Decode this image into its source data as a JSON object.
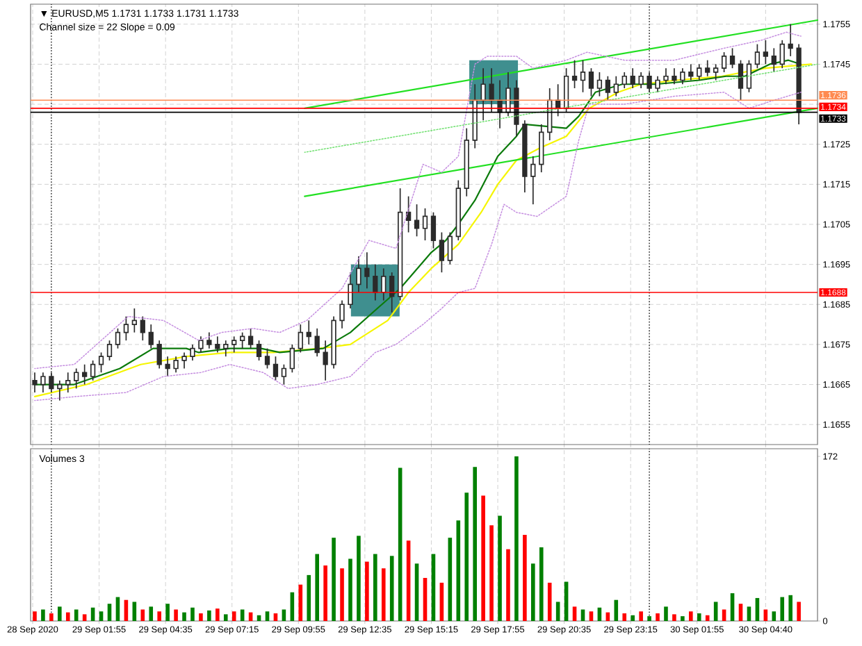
{
  "chart_data": [
    {
      "type": "candlestick",
      "title": "▼ EURUSD,M5 1.1731 1.1733 1.1731 1.1733",
      "subtitle": "Channel size = 22 Slope = 0.09",
      "x": [
        "2020-09-28T23:20",
        "2020-09-28T23:40",
        "2020-09-29T00:00",
        "2020-09-29T00:20",
        "2020-09-29T00:40",
        "2020-09-29T01:00",
        "2020-09-29T01:20",
        "2020-09-29T01:40",
        "2020-09-29T02:00",
        "2020-09-29T02:20",
        "2020-09-29T02:40",
        "2020-09-29T03:00",
        "2020-09-29T03:20",
        "2020-09-29T03:40",
        "2020-09-29T04:00",
        "2020-09-29T04:20",
        "2020-09-29T04:40",
        "2020-09-29T05:00",
        "2020-09-29T05:20",
        "2020-09-29T05:40",
        "2020-09-29T06:00",
        "2020-09-29T06:20",
        "2020-09-29T06:40",
        "2020-09-29T07:00",
        "2020-09-29T07:20",
        "2020-09-29T07:40",
        "2020-09-29T08:00",
        "2020-09-29T08:20",
        "2020-09-29T08:40",
        "2020-09-29T09:00",
        "2020-09-29T09:20",
        "2020-09-29T09:40",
        "2020-09-29T10:00",
        "2020-09-29T10:20",
        "2020-09-29T10:40",
        "2020-09-29T11:00",
        "2020-09-29T11:20",
        "2020-09-29T11:40",
        "2020-09-29T12:00",
        "2020-09-29T12:20",
        "2020-09-29T12:40",
        "2020-09-29T13:00",
        "2020-09-29T13:20",
        "2020-09-29T13:40",
        "2020-09-29T14:00",
        "2020-09-29T14:20",
        "2020-09-29T14:40",
        "2020-09-29T15:00",
        "2020-09-29T15:20",
        "2020-09-29T15:40",
        "2020-09-29T16:00",
        "2020-09-29T16:20",
        "2020-09-29T16:40",
        "2020-09-29T17:00",
        "2020-09-29T17:20",
        "2020-09-29T17:40",
        "2020-09-29T18:00",
        "2020-09-29T18:20",
        "2020-09-29T18:40",
        "2020-09-29T19:00",
        "2020-09-29T19:20",
        "2020-09-29T19:40",
        "2020-09-29T20:00",
        "2020-09-29T20:20",
        "2020-09-29T20:40",
        "2020-09-29T21:00",
        "2020-09-29T21:20",
        "2020-09-29T21:40",
        "2020-09-29T22:00",
        "2020-09-29T22:20",
        "2020-09-29T22:40",
        "2020-09-29T23:00",
        "2020-09-29T23:20",
        "2020-09-29T23:40",
        "2020-09-30T00:00",
        "2020-09-30T00:20",
        "2020-09-30T00:40",
        "2020-09-30T01:00",
        "2020-09-30T01:20",
        "2020-09-30T01:40",
        "2020-09-30T02:00",
        "2020-09-30T02:20",
        "2020-09-30T02:40",
        "2020-09-30T03:00",
        "2020-09-30T03:20",
        "2020-09-30T03:40",
        "2020-09-30T04:00",
        "2020-09-30T04:20",
        "2020-09-30T04:40",
        "2020-09-30T05:00",
        "2020-09-30T05:20",
        "2020-09-30T05:40",
        "2020-09-30T06:00"
      ],
      "ohlc": [
        [
          1.1666,
          1.1668,
          1.1663,
          1.1665
        ],
        [
          1.1665,
          1.1668,
          1.1663,
          1.1667
        ],
        [
          1.1667,
          1.1668,
          1.1663,
          1.1664
        ],
        [
          1.1664,
          1.1666,
          1.1661,
          1.1665
        ],
        [
          1.1665,
          1.1668,
          1.1663,
          1.1666
        ],
        [
          1.1666,
          1.1669,
          1.1664,
          1.1668
        ],
        [
          1.1668,
          1.167,
          1.1665,
          1.1667
        ],
        [
          1.1667,
          1.1671,
          1.1666,
          1.167
        ],
        [
          1.167,
          1.1673,
          1.1668,
          1.1672
        ],
        [
          1.1672,
          1.1676,
          1.1671,
          1.1675
        ],
        [
          1.1675,
          1.1679,
          1.1674,
          1.1678
        ],
        [
          1.1678,
          1.1682,
          1.1676,
          1.168
        ],
        [
          1.168,
          1.1684,
          1.1678,
          1.1681
        ],
        [
          1.1681,
          1.1682,
          1.1676,
          1.1678
        ],
        [
          1.1678,
          1.168,
          1.1674,
          1.1675
        ],
        [
          1.1675,
          1.1676,
          1.1669,
          1.167
        ],
        [
          1.167,
          1.1672,
          1.1667,
          1.1669
        ],
        [
          1.1669,
          1.1672,
          1.1668,
          1.1671
        ],
        [
          1.1671,
          1.1673,
          1.1669,
          1.1672
        ],
        [
          1.1672,
          1.1675,
          1.1671,
          1.1674
        ],
        [
          1.1674,
          1.1677,
          1.1673,
          1.1676
        ],
        [
          1.1676,
          1.1678,
          1.1674,
          1.1675
        ],
        [
          1.1675,
          1.1677,
          1.1673,
          1.1674
        ],
        [
          1.1674,
          1.1676,
          1.1672,
          1.1675
        ],
        [
          1.1675,
          1.1677,
          1.1673,
          1.1676
        ],
        [
          1.1676,
          1.1678,
          1.1674,
          1.1677
        ],
        [
          1.1677,
          1.1679,
          1.1674,
          1.1675
        ],
        [
          1.1675,
          1.1676,
          1.1671,
          1.1672
        ],
        [
          1.1672,
          1.1674,
          1.1669,
          1.167
        ],
        [
          1.167,
          1.1672,
          1.1666,
          1.1667
        ],
        [
          1.1667,
          1.167,
          1.1665,
          1.1669
        ],
        [
          1.1669,
          1.1675,
          1.1668,
          1.1674
        ],
        [
          1.1674,
          1.168,
          1.1673,
          1.1678
        ],
        [
          1.1678,
          1.1681,
          1.1675,
          1.1677
        ],
        [
          1.1677,
          1.1679,
          1.1672,
          1.1673
        ],
        [
          1.1673,
          1.1676,
          1.1666,
          1.167
        ],
        [
          1.167,
          1.1682,
          1.1669,
          1.1681
        ],
        [
          1.1681,
          1.1686,
          1.1679,
          1.1685
        ],
        [
          1.1685,
          1.1693,
          1.1684,
          1.169
        ],
        [
          1.169,
          1.1697,
          1.1688,
          1.1694
        ],
        [
          1.1694,
          1.1698,
          1.1689,
          1.1692
        ],
        [
          1.1692,
          1.1695,
          1.1686,
          1.1688
        ],
        [
          1.1688,
          1.1694,
          1.1686,
          1.1692
        ],
        [
          1.1692,
          1.1693,
          1.1683,
          1.1687
        ],
        [
          1.1687,
          1.1714,
          1.1686,
          1.1708
        ],
        [
          1.1708,
          1.1712,
          1.1703,
          1.1706
        ],
        [
          1.1706,
          1.171,
          1.1702,
          1.1704
        ],
        [
          1.1704,
          1.1709,
          1.1701,
          1.1707
        ],
        [
          1.1707,
          1.1708,
          1.1699,
          1.1701
        ],
        [
          1.1701,
          1.1703,
          1.1693,
          1.1696
        ],
        [
          1.1696,
          1.1703,
          1.1695,
          1.1702
        ],
        [
          1.1702,
          1.1716,
          1.1701,
          1.1714
        ],
        [
          1.1714,
          1.1729,
          1.1712,
          1.1726
        ],
        [
          1.1726,
          1.174,
          1.1724,
          1.1736
        ],
        [
          1.1736,
          1.1744,
          1.1731,
          1.174
        ],
        [
          1.174,
          1.1744,
          1.1733,
          1.1736
        ],
        [
          1.1736,
          1.1741,
          1.1729,
          1.1733
        ],
        [
          1.1733,
          1.1743,
          1.1732,
          1.1739
        ],
        [
          1.1739,
          1.1741,
          1.1727,
          1.173
        ],
        [
          1.173,
          1.1731,
          1.1713,
          1.1717
        ],
        [
          1.1717,
          1.1722,
          1.171,
          1.172
        ],
        [
          1.172,
          1.173,
          1.1718,
          1.1728
        ],
        [
          1.1728,
          1.1739,
          1.1726,
          1.1736
        ],
        [
          1.1736,
          1.174,
          1.1732,
          1.1734
        ],
        [
          1.1734,
          1.1744,
          1.1733,
          1.1742
        ],
        [
          1.1742,
          1.1746,
          1.1739,
          1.1741
        ],
        [
          1.1741,
          1.1746,
          1.1738,
          1.1743
        ],
        [
          1.1743,
          1.1744,
          1.1737,
          1.1739
        ],
        [
          1.1739,
          1.1743,
          1.1737,
          1.1741
        ],
        [
          1.1741,
          1.1742,
          1.1736,
          1.1738
        ],
        [
          1.1738,
          1.1742,
          1.1737,
          1.174
        ],
        [
          1.174,
          1.1743,
          1.1739,
          1.1742
        ],
        [
          1.1742,
          1.1744,
          1.1739,
          1.174
        ],
        [
          1.174,
          1.1743,
          1.1739,
          1.1742
        ],
        [
          1.1742,
          1.1743,
          1.1738,
          1.1739
        ],
        [
          1.1739,
          1.1742,
          1.1738,
          1.1741
        ],
        [
          1.1741,
          1.1744,
          1.174,
          1.1742
        ],
        [
          1.1742,
          1.1744,
          1.174,
          1.1741
        ],
        [
          1.1741,
          1.1744,
          1.174,
          1.1743
        ],
        [
          1.1743,
          1.1745,
          1.1741,
          1.1742
        ],
        [
          1.1742,
          1.1745,
          1.1741,
          1.1744
        ],
        [
          1.1744,
          1.1746,
          1.1742,
          1.1743
        ],
        [
          1.1743,
          1.1745,
          1.1741,
          1.1744
        ],
        [
          1.1744,
          1.1748,
          1.1743,
          1.1747
        ],
        [
          1.1747,
          1.1749,
          1.1744,
          1.1745
        ],
        [
          1.1745,
          1.1746,
          1.1736,
          1.1739
        ],
        [
          1.1739,
          1.1746,
          1.1738,
          1.1745
        ],
        [
          1.1745,
          1.175,
          1.1744,
          1.1748
        ],
        [
          1.1748,
          1.1751,
          1.1745,
          1.1747
        ],
        [
          1.1747,
          1.1749,
          1.1743,
          1.1745
        ],
        [
          1.1745,
          1.1751,
          1.1744,
          1.175
        ],
        [
          1.175,
          1.1755,
          1.1747,
          1.1749
        ],
        [
          1.1749,
          1.175,
          1.173,
          1.1733
        ]
      ],
      "color": "#2b2b2b",
      "series": [
        {
          "type": "bar",
          "x": [
            "2020-09-29T13:00",
            "2020-09-29T17:45"
          ],
          "base": [
            1.1682,
            1.1735
          ],
          "values": [
            0.0013,
            0.0011
          ],
          "color": "#3f8f8f"
        },
        {
          "type": "line",
          "line_style": "dotted",
          "color": "#c58ee0",
          "x": [
            "2020-09-28T23:20",
            "2020-09-29T00:55",
            "2020-09-29T03:05",
            "2020-09-29T04:30",
            "2020-09-29T05:55",
            "2020-09-29T06:50",
            "2020-09-29T08:05",
            "2020-09-29T09:10",
            "2020-09-29T10:15",
            "2020-09-29T11:40",
            "2020-09-29T12:45",
            "2020-09-29T13:50",
            "2020-09-29T14:55",
            "2020-09-29T15:40",
            "2020-09-29T16:20",
            "2020-09-29T17:00",
            "2020-09-29T17:30",
            "2020-09-29T18:40",
            "2020-09-29T19:20",
            "2020-09-29T20:40",
            "2020-09-29T21:30",
            "2020-09-29T23:00",
            "2020-09-30T01:00",
            "2020-09-30T03:00",
            "2020-09-30T04:30",
            "2020-09-30T05:30",
            "2020-09-30T06:05"
          ],
          "values": [
            1.1669,
            1.167,
            1.1682,
            1.1681,
            1.1676,
            1.1678,
            1.1679,
            1.1678,
            1.1681,
            1.1689,
            1.1701,
            1.1699,
            1.172,
            1.1718,
            1.1722,
            1.1745,
            1.1747,
            1.1747,
            1.1744,
            1.1746,
            1.1748,
            1.1746,
            1.1746,
            1.1749,
            1.1751,
            1.1753,
            1.1752
          ]
        },
        {
          "type": "line",
          "line_style": "dotted",
          "color": "#c58ee0",
          "x": [
            "2020-09-28T23:20",
            "2020-09-29T01:00",
            "2020-09-29T03:00",
            "2020-09-29T04:30",
            "2020-09-29T06:00",
            "2020-09-29T07:10",
            "2020-09-29T08:30",
            "2020-09-29T09:30",
            "2020-09-29T10:40",
            "2020-09-29T12:00",
            "2020-09-29T13:00",
            "2020-09-29T13:50",
            "2020-09-29T14:55",
            "2020-09-29T15:40",
            "2020-09-29T16:20",
            "2020-09-29T17:00",
            "2020-09-29T17:40",
            "2020-09-29T18:10",
            "2020-09-29T18:40",
            "2020-09-29T19:30",
            "2020-09-29T20:40",
            "2020-09-29T21:10",
            "2020-09-29T21:35",
            "2020-09-29T23:00",
            "2020-09-30T01:00",
            "2020-09-30T03:00",
            "2020-09-30T04:00",
            "2020-09-30T05:00",
            "2020-09-30T06:05"
          ],
          "values": [
            1.1661,
            1.1662,
            1.1663,
            1.1667,
            1.1668,
            1.167,
            1.1668,
            1.1664,
            1.1665,
            1.1667,
            1.1673,
            1.1675,
            1.168,
            1.1684,
            1.1688,
            1.1689,
            1.17,
            1.171,
            1.1708,
            1.1707,
            1.1712,
            1.1726,
            1.1735,
            1.1735,
            1.1737,
            1.1738,
            1.1734,
            1.1736,
            1.1738
          ]
        },
        {
          "type": "line",
          "line_style": "solid",
          "color": "#f5f500",
          "x": [
            "2020-09-28T23:20",
            "2020-09-29T01:25",
            "2020-09-29T03:35",
            "2020-09-29T05:25",
            "2020-09-29T07:10",
            "2020-09-29T08:55",
            "2020-09-29T10:45",
            "2020-09-29T12:00",
            "2020-09-29T13:30",
            "2020-09-29T14:20",
            "2020-09-29T15:15",
            "2020-09-29T16:20",
            "2020-09-29T17:15",
            "2020-09-29T17:55",
            "2020-09-29T18:40",
            "2020-09-29T19:35",
            "2020-09-29T20:40",
            "2020-09-29T21:35",
            "2020-09-29T22:45",
            "2020-09-29T23:40",
            "2020-09-30T01:05",
            "2020-09-30T02:55",
            "2020-09-30T04:40",
            "2020-09-30T06:30"
          ],
          "values": [
            1.1662,
            1.1665,
            1.167,
            1.1672,
            1.1673,
            1.1673,
            1.1674,
            1.1675,
            1.1681,
            1.1688,
            1.1694,
            1.17,
            1.1708,
            1.1715,
            1.1721,
            1.1724,
            1.1727,
            1.1734,
            1.1738,
            1.174,
            1.1741,
            1.1742,
            1.1744,
            1.1745
          ]
        },
        {
          "type": "line",
          "line_style": "solid",
          "color": "#0b7a0b",
          "x": [
            "2020-09-28T23:20",
            "2020-09-29T00:55",
            "2020-09-29T02:45",
            "2020-09-29T04:05",
            "2020-09-29T05:25",
            "2020-09-29T05:55",
            "2020-09-29T07:10",
            "2020-09-29T08:25",
            "2020-09-29T09:10",
            "2020-09-29T10:55",
            "2020-09-29T12:00",
            "2020-09-29T13:05",
            "2020-09-29T14:00",
            "2020-09-29T15:15",
            "2020-09-29T15:50",
            "2020-09-29T16:20",
            "2020-09-29T17:00",
            "2020-09-29T17:55",
            "2020-09-29T18:40",
            "2020-09-29T19:00",
            "2020-09-29T20:40",
            "2020-09-29T21:10",
            "2020-09-29T21:50",
            "2020-09-29T22:55",
            "2020-09-30T00:15",
            "2020-09-30T02:00",
            "2020-09-30T03:05",
            "2020-09-30T03:50",
            "2020-09-30T04:50",
            "2020-09-30T05:35",
            "2020-09-30T06:05"
          ],
          "values": [
            1.1665,
            1.1665,
            1.1669,
            1.1674,
            1.1674,
            1.1673,
            1.1674,
            1.1674,
            1.1673,
            1.1674,
            1.1678,
            1.1684,
            1.1689,
            1.1698,
            1.1701,
            1.1705,
            1.1711,
            1.1722,
            1.1727,
            1.173,
            1.1729,
            1.1732,
            1.1738,
            1.174,
            1.174,
            1.1741,
            1.1742,
            1.1742,
            1.1745,
            1.1746,
            1.1745
          ]
        },
        {
          "type": "line",
          "line_style": "solid",
          "color": "#22e022",
          "x": [
            "2020-09-29T10:10",
            "2020-09-30T06:45"
          ],
          "values": [
            1.1734,
            1.1756
          ]
        },
        {
          "type": "line",
          "line_style": "dotted",
          "color": "#6fe06f",
          "x": [
            "2020-09-29T10:10",
            "2020-09-30T06:45"
          ],
          "values": [
            1.1723,
            1.1745
          ]
        },
        {
          "type": "line",
          "line_style": "solid",
          "color": "#22e022",
          "x": [
            "2020-09-29T10:10",
            "2020-09-30T06:45"
          ],
          "values": [
            1.1712,
            1.1734
          ]
        }
      ],
      "xlim": [
        "2020-09-28T23:10",
        "2020-09-30T06:45"
      ],
      "ylim": [
        1.165,
        1.176
      ],
      "xticks": [
        {
          "value": "2020-09-28T23:15",
          "label": null
        },
        {
          "value": "2020-09-29T01:55",
          "label": null
        },
        {
          "value": "2020-09-29T04:35",
          "label": null
        },
        {
          "value": "2020-09-29T07:15",
          "label": null
        },
        {
          "value": "2020-09-29T09:55",
          "label": null
        },
        {
          "value": "2020-09-29T12:35",
          "label": null
        },
        {
          "value": "2020-09-29T15:15",
          "label": null
        },
        {
          "value": "2020-09-29T17:55",
          "label": null
        },
        {
          "value": "2020-09-29T20:35",
          "label": null
        },
        {
          "value": "2020-09-29T23:15",
          "label": null
        },
        {
          "value": "2020-09-30T01:55",
          "label": null
        },
        {
          "value": "2020-09-30T04:40",
          "label": null
        }
      ],
      "yticks": [
        1.1655,
        1.1665,
        1.1675,
        1.1685,
        1.1695,
        1.1705,
        1.1715,
        1.1725,
        {
          "value": 1.1735,
          "label": null
        },
        1.1745,
        1.1755
      ],
      "tick_labels": "y",
      "grid": true,
      "ref_lines": [
        {
          "axis": "x",
          "value": "2020-09-29T00:00",
          "color": "#000000",
          "line_style": "dotted"
        },
        {
          "axis": "x",
          "value": "2020-09-30T00:00",
          "color": "#000000",
          "line_style": "dotted"
        },
        {
          "axis": "y",
          "value": 1.1688,
          "label": "1.1688",
          "color": "#ff0000"
        },
        {
          "axis": "y",
          "value": 1.1736,
          "label": "1.1736",
          "color": "#ff8a50"
        },
        {
          "axis": "y",
          "value": 1.1734,
          "label": "1.1734",
          "color": "#ff0000"
        },
        {
          "axis": "y",
          "value": 1.1733,
          "label": "1.1733",
          "color": "#000000"
        }
      ]
    },
    {
      "type": "bar",
      "title": "Volumes 3",
      "x": [
        "2020-09-28T23:20",
        "2020-09-28T23:40",
        "2020-09-29T00:00",
        "2020-09-29T00:20",
        "2020-09-29T00:40",
        "2020-09-29T01:00",
        "2020-09-29T01:20",
        "2020-09-29T01:40",
        "2020-09-29T02:00",
        "2020-09-29T02:20",
        "2020-09-29T02:40",
        "2020-09-29T03:00",
        "2020-09-29T03:20",
        "2020-09-29T03:40",
        "2020-09-29T04:00",
        "2020-09-29T04:20",
        "2020-09-29T04:40",
        "2020-09-29T05:00",
        "2020-09-29T05:20",
        "2020-09-29T05:40",
        "2020-09-29T06:00",
        "2020-09-29T06:20",
        "2020-09-29T06:40",
        "2020-09-29T07:00",
        "2020-09-29T07:20",
        "2020-09-29T07:40",
        "2020-09-29T08:00",
        "2020-09-29T08:20",
        "2020-09-29T08:40",
        "2020-09-29T09:00",
        "2020-09-29T09:20",
        "2020-09-29T09:40",
        "2020-09-29T10:00",
        "2020-09-29T10:20",
        "2020-09-29T10:40",
        "2020-09-29T11:00",
        "2020-09-29T11:20",
        "2020-09-29T11:40",
        "2020-09-29T12:00",
        "2020-09-29T12:20",
        "2020-09-29T12:40",
        "2020-09-29T13:00",
        "2020-09-29T13:20",
        "2020-09-29T13:40",
        "2020-09-29T14:00",
        "2020-09-29T14:20",
        "2020-09-29T14:40",
        "2020-09-29T15:00",
        "2020-09-29T15:20",
        "2020-09-29T15:40",
        "2020-09-29T16:00",
        "2020-09-29T16:20",
        "2020-09-29T16:40",
        "2020-09-29T17:00",
        "2020-09-29T17:20",
        "2020-09-29T17:40",
        "2020-09-29T18:00",
        "2020-09-29T18:20",
        "2020-09-29T18:40",
        "2020-09-29T19:00",
        "2020-09-29T19:20",
        "2020-09-29T19:40",
        "2020-09-29T20:00",
        "2020-09-29T20:20",
        "2020-09-29T20:40",
        "2020-09-29T21:00",
        "2020-09-29T21:20",
        "2020-09-29T21:40",
        "2020-09-29T22:00",
        "2020-09-29T22:20",
        "2020-09-29T22:40",
        "2020-09-29T23:00",
        "2020-09-29T23:20",
        "2020-09-29T23:40",
        "2020-09-30T00:00",
        "2020-09-30T00:20",
        "2020-09-30T00:40",
        "2020-09-30T01:00",
        "2020-09-30T01:20",
        "2020-09-30T01:40",
        "2020-09-30T02:00",
        "2020-09-30T02:20",
        "2020-09-30T02:40",
        "2020-09-30T03:00",
        "2020-09-30T03:20",
        "2020-09-30T03:40",
        "2020-09-30T04:00",
        "2020-09-30T04:20",
        "2020-09-30T04:40",
        "2020-09-30T05:00",
        "2020-09-30T05:20",
        "2020-09-30T05:40",
        "2020-09-30T06:00"
      ],
      "values": [
        10,
        12,
        8,
        15,
        9,
        12,
        7,
        14,
        10,
        18,
        25,
        22,
        20,
        12,
        15,
        10,
        18,
        12,
        9,
        14,
        8,
        11,
        13,
        7,
        10,
        12,
        9,
        6,
        10,
        8,
        12,
        30,
        38,
        48,
        70,
        58,
        87,
        55,
        65,
        89,
        62,
        70,
        55,
        68,
        160,
        84,
        60,
        45,
        70,
        40,
        87,
        105,
        134,
        161,
        131,
        100,
        110,
        75,
        172,
        90,
        60,
        77,
        40,
        20,
        41,
        15,
        12,
        10,
        14,
        9,
        22,
        8,
        6,
        10,
        5,
        8,
        15,
        7,
        5,
        10,
        8,
        6,
        20,
        12,
        29,
        18,
        15,
        24,
        12,
        10,
        25,
        27,
        20
      ],
      "colors": [
        "#ff0000",
        "#008000",
        "#ff0000",
        "#008000",
        "#ff0000",
        "#008000",
        "#ff0000",
        "#008000",
        "#008000",
        "#008000",
        "#008000",
        "#ff0000",
        "#008000",
        "#ff0000",
        "#008000",
        "#ff0000",
        "#008000",
        "#ff0000",
        "#008000",
        "#008000",
        "#ff0000",
        "#008000",
        "#ff0000",
        "#008000",
        "#ff0000",
        "#008000",
        "#ff0000",
        "#008000",
        "#008000",
        "#ff0000",
        "#008000",
        "#008000",
        "#ff0000",
        "#008000",
        "#008000",
        "#ff0000",
        "#008000",
        "#ff0000",
        "#008000",
        "#008000",
        "#ff0000",
        "#008000",
        "#ff0000",
        "#008000",
        "#008000",
        "#ff0000",
        "#008000",
        "#ff0000",
        "#008000",
        "#ff0000",
        "#008000",
        "#008000",
        "#008000",
        "#008000",
        "#ff0000",
        "#ff0000",
        "#008000",
        "#ff0000",
        "#008000",
        "#ff0000",
        "#008000",
        "#008000",
        "#ff0000",
        "#008000",
        "#008000",
        "#ff0000",
        "#008000",
        "#ff0000",
        "#008000",
        "#ff0000",
        "#008000",
        "#ff0000",
        "#008000",
        "#ff0000",
        "#008000",
        "#ff0000",
        "#008000",
        "#ff0000",
        "#008000",
        "#ff0000",
        "#008000",
        "#ff0000",
        "#008000",
        "#ff0000",
        "#008000",
        "#ff0000",
        "#008000",
        "#008000",
        "#ff0000",
        "#008000",
        "#008000",
        "#008000",
        "#ff0000"
      ],
      "xlim": [
        "2020-09-28T23:10",
        "2020-09-30T06:45"
      ],
      "ylim": [
        0,
        180
      ],
      "xticks": [
        {
          "value": "2020-09-28T23:15",
          "label": "28 Sep 2020"
        },
        {
          "value": "2020-09-29T01:55",
          "label": "29 Sep 01:55"
        },
        {
          "value": "2020-09-29T04:35",
          "label": "29 Sep 04:35"
        },
        {
          "value": "2020-09-29T07:15",
          "label": "29 Sep 07:15"
        },
        {
          "value": "2020-09-29T09:55",
          "label": "29 Sep 09:55"
        },
        {
          "value": "2020-09-29T12:35",
          "label": "29 Sep 12:35"
        },
        {
          "value": "2020-09-29T15:15",
          "label": "29 Sep 15:15"
        },
        {
          "value": "2020-09-29T17:55",
          "label": "29 Sep 17:55"
        },
        {
          "value": "2020-09-29T20:35",
          "label": "29 Sep 20:35"
        },
        {
          "value": "2020-09-29T23:15",
          "label": "29 Sep 23:15"
        },
        {
          "value": "2020-09-30T01:55",
          "label": "30 Sep 01:55"
        },
        {
          "value": "2020-09-30T04:40",
          "label": "30 Sep 04:40"
        }
      ],
      "yticks": [
        0,
        172
      ],
      "grid": "x",
      "ref_lines": [
        {
          "axis": "x",
          "value": "2020-09-29T00:00",
          "color": "#000000",
          "line_style": "dotted"
        },
        {
          "axis": "x",
          "value": "2020-09-30T00:00",
          "color": "#000000",
          "line_style": "dotted"
        }
      ]
    }
  ]
}
